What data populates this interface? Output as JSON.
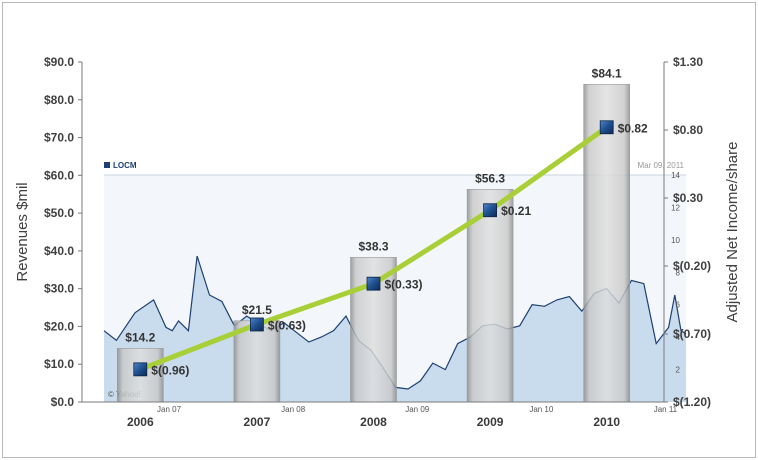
{
  "chart_data": {
    "type": "bar+line",
    "categories": [
      "2006",
      "2007",
      "2008",
      "2009",
      "2010"
    ],
    "revenues": {
      "name": "Revenues $mil",
      "values": [
        14.2,
        21.5,
        38.3,
        56.3,
        84.1
      ],
      "labels": [
        "$14.2",
        "$21.5",
        "$38.3",
        "$56.3",
        "$84.1"
      ]
    },
    "eps": {
      "name": "Adjusted Net Income/share",
      "values": [
        -0.96,
        -0.63,
        -0.33,
        0.21,
        0.82
      ],
      "labels": [
        "$(0.96)",
        "$(0.63)",
        "$(0.33)",
        "$0.21",
        "$0.82"
      ]
    },
    "ylabel_left": "Revenues $mil",
    "ylabel_right": "Adjusted Net Income/share",
    "ylim_left": [
      0,
      90
    ],
    "ylim_right": [
      -1.2,
      1.3
    ],
    "left_ticks": [
      {
        "v": 0,
        "label": "$0.0"
      },
      {
        "v": 10,
        "label": "$10.0"
      },
      {
        "v": 20,
        "label": "$20.0"
      },
      {
        "v": 30,
        "label": "$30.0"
      },
      {
        "v": 40,
        "label": "$40.0"
      },
      {
        "v": 50,
        "label": "$50.0"
      },
      {
        "v": 60,
        "label": "$60.0"
      },
      {
        "v": 70,
        "label": "$70.0"
      },
      {
        "v": 80,
        "label": "$80.0"
      },
      {
        "v": 90,
        "label": "$90.0"
      }
    ],
    "right_ticks": [
      {
        "v": 1.3,
        "label": "$1.30"
      },
      {
        "v": 0.8,
        "label": "$0.80"
      },
      {
        "v": 0.3,
        "label": "$0.30"
      },
      {
        "v": -0.2,
        "label": "$(0.20)"
      },
      {
        "v": -0.7,
        "label": "$(0.70)"
      },
      {
        "v": -1.2,
        "label": "$(1.20)"
      }
    ],
    "stock_inset": {
      "ticker": "LOCM",
      "date": "Mar 09, 2011",
      "credit": "© Yahoo!",
      "ylim": [
        0,
        14
      ],
      "y_ticks": [
        "2",
        "4",
        "6",
        "8",
        "10",
        "12",
        "14"
      ],
      "x_ticks": [
        "Jan 07",
        "Jan 08",
        "Jan 09",
        "Jan 10",
        "Jan 11"
      ],
      "series_x": [
        2006.5,
        2006.6,
        2006.75,
        2006.9,
        2007.0,
        2007.05,
        2007.1,
        2007.18,
        2007.25,
        2007.35,
        2007.45,
        2007.55,
        2007.65,
        2007.75,
        2007.85,
        2007.95,
        2008.05,
        2008.15,
        2008.25,
        2008.35,
        2008.45,
        2008.55,
        2008.65,
        2008.75,
        2008.85,
        2008.95,
        2009.05,
        2009.15,
        2009.25,
        2009.35,
        2009.45,
        2009.55,
        2009.65,
        2009.75,
        2009.85,
        2009.95,
        2010.05,
        2010.15,
        2010.25,
        2010.35,
        2010.45,
        2010.55,
        2010.65,
        2010.75,
        2010.85,
        2010.95,
        2011.05,
        2011.1,
        2011.15,
        2011.19
      ],
      "series_y": [
        4.4,
        3.8,
        5.5,
        6.3,
        4.6,
        4.4,
        5.0,
        4.4,
        9.0,
        6.6,
        6.2,
        4.7,
        5.3,
        4.8,
        4.4,
        4.9,
        4.3,
        3.7,
        4.0,
        4.4,
        5.3,
        3.8,
        3.2,
        2.1,
        0.9,
        0.8,
        1.3,
        2.4,
        2.0,
        3.6,
        4.0,
        4.7,
        4.8,
        4.5,
        4.7,
        6.0,
        5.9,
        6.3,
        6.5,
        5.6,
        6.7,
        7.0,
        6.1,
        7.5,
        7.3,
        3.6,
        4.6,
        6.6,
        4.4,
        4.2
      ]
    }
  }
}
